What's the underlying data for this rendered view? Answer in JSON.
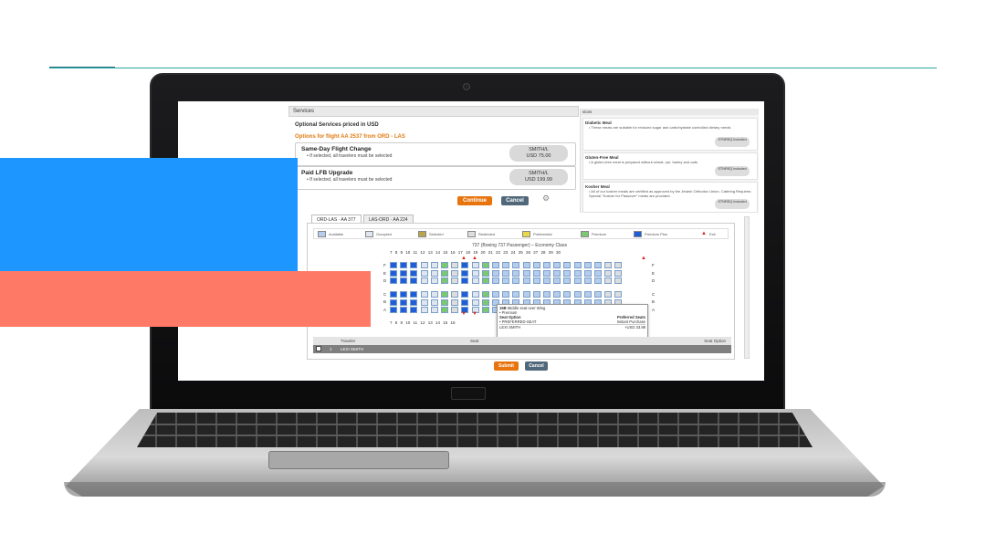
{
  "panel": {
    "header": "Services",
    "side_header": "vices"
  },
  "services": {
    "title": "Optional Services priced in USD",
    "options_title": "Options for flight AA 2537 from ORD - LAS",
    "rows": [
      {
        "name": "Same-Day Flight Change",
        "note": "If selected, all travelers must be selected",
        "traveler": "SMITH/L",
        "price": "USD 75.00"
      },
      {
        "name": "Paid LFB Upgrade",
        "note": "If selected, all travelers must be selected",
        "traveler": "SMITH/L",
        "price": "USD 199.99"
      }
    ],
    "continue_label": "Continue",
    "cancel_label": "Cancel"
  },
  "meals": [
    {
      "title": "Diabetic Meal",
      "desc": "These meals are suitable for reduced sugar and carbohydrate controlled dietary needs",
      "status": "STNREQ Included"
    },
    {
      "title": "Gluten-Free Meal",
      "desc": "A gluten-free meal is prepared without wheat, rye, barley and oats.",
      "status": "STNREQ Included"
    },
    {
      "title": "Kosher Meal",
      "desc": "All of our kosher meals are certified as approved by the Jewish Orthodox Union. Catering Requires: Special \"Kosher for Passover\" meals are provided.",
      "status": "STNREQ Included"
    }
  ],
  "seatmap": {
    "tabs": [
      "ORD-LAS · AA 377",
      "LAS-ORD · AA 224"
    ],
    "legend": [
      "Available",
      "Occupied",
      "Selected",
      "Restricted",
      "Preferential",
      "Premium",
      "Premium Plus",
      "Exit"
    ],
    "aircraft": "737 (Boeing 737 Passenger) – Economy Class",
    "row_numbers": "7  8  9  10  11  12  13  14  15  16  17  18  19  20  21  22  23  24  25  26  27  28  29  30",
    "row_numbers_bottom": "7  8  9  10  11  12  13  14  15  16",
    "letters_left": [
      "F",
      "E",
      "D",
      "C",
      "B",
      "A"
    ],
    "letters_right": [
      "F",
      "E",
      "D",
      "C",
      "B",
      "A"
    ],
    "popup": {
      "seat": "15B",
      "seat_desc": "Middle seat over Wing",
      "feature": "Premium",
      "option_label": "Seat Option",
      "option_value": "PREFERRED-SEAT",
      "preferred_label": "Preferred Seats",
      "instant_label": "Instant Purchase",
      "traveler": "LEXI SMITH",
      "price": "+USD 33.98"
    },
    "traveler_header": {
      "traveler": "Traveler",
      "seat": "Seat",
      "seat_option": "Seat Option"
    },
    "traveler_row": {
      "index": "1",
      "name": "LEXI SMITH"
    }
  },
  "footer": {
    "submit_label": "Submit",
    "cancel_label": "Cancel"
  },
  "colors": {
    "accent_teal": "#2aa6a0",
    "block_blue": "#1e96ff",
    "block_coral": "#ff7a66",
    "btn_orange": "#e8740e",
    "btn_slate": "#51687a"
  }
}
